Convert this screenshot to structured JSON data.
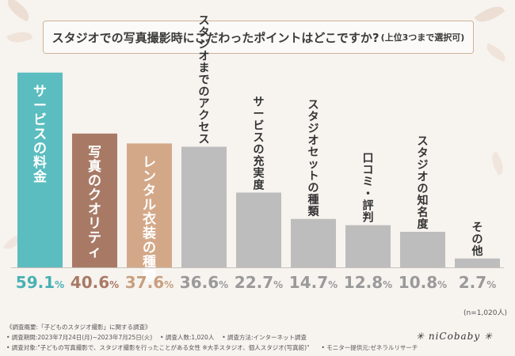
{
  "chart_data": {
    "type": "bar",
    "title": "スタジオでの写真撮影時にこだわったポイントはどこですか?",
    "subtitle": "(上位3つまで選択可)",
    "categories": [
      "サービスの料金",
      "写真のクオリティ",
      "レンタル衣装の種類",
      "スタジオまでのアクセス",
      "サービスの充実度",
      "スタジオセットの種類",
      "口コミ・評判",
      "スタジオの知名度",
      "その他"
    ],
    "values": [
      59.1,
      40.6,
      37.6,
      36.6,
      22.7,
      14.7,
      12.8,
      10.8,
      2.7
    ],
    "unit": "%",
    "ylim": [
      0,
      60
    ],
    "colors": [
      "#5bbdbf",
      "#a87a66",
      "#d3a888",
      "#bdbdbd",
      "#bdbdbd",
      "#bdbdbd",
      "#bdbdbd",
      "#bdbdbd",
      "#bdbdbd"
    ],
    "label_colors": [
      "#49b1b4",
      "#a87a66",
      "#c8a080",
      "#9a9a9a",
      "#9a9a9a",
      "#9a9a9a",
      "#9a9a9a",
      "#9a9a9a",
      "#9a9a9a"
    ],
    "sample_size": "(n=1,020人)"
  },
  "footer": {
    "line1": "《調査概要:「子どものスタジオ撮影」に関する調査》",
    "line2": "• 調査期間:2023年7月24日(月)~2023年7月25日(火)　 • 調査人数:1,020人　 • 調査方法:インターネット調査",
    "line3": "• 調査対象:\"子どもの写真撮影で、スタジオ撮影を行ったことがある女性 ※大手スタジオ、個人スタジオ(写真館)\"　　• モニター提供元:ゼネラルリサーチ",
    "brand": "✳ niCobaby ✳"
  }
}
